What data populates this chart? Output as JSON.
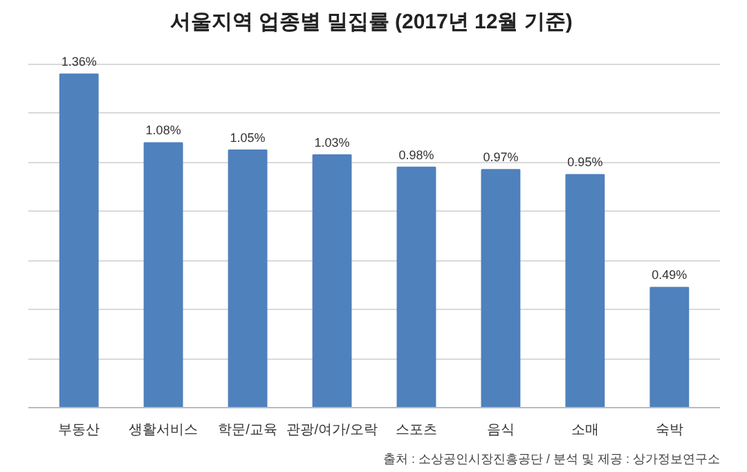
{
  "chart_data": {
    "type": "bar",
    "title": "서울지역 업종별 밀집률",
    "subtitle": "(2017년 12월 기준)",
    "categories": [
      "부동산",
      "생활서비스",
      "학문/교육",
      "관광/여가/오락",
      "스포츠",
      "음식",
      "소매",
      "숙박"
    ],
    "values": [
      1.36,
      1.08,
      1.05,
      1.03,
      0.98,
      0.97,
      0.95,
      0.49
    ],
    "value_labels": [
      "1.36%",
      "1.08%",
      "1.05%",
      "1.03%",
      "0.98%",
      "0.97%",
      "0.95%",
      "0.49%"
    ],
    "color": "#4f81bd",
    "grid": "y",
    "tick_labels": "x",
    "annotations": [
      "출처 : 소상공인시장진흥공단 / 분석 및 제공 : 상가정보연구소"
    ]
  }
}
